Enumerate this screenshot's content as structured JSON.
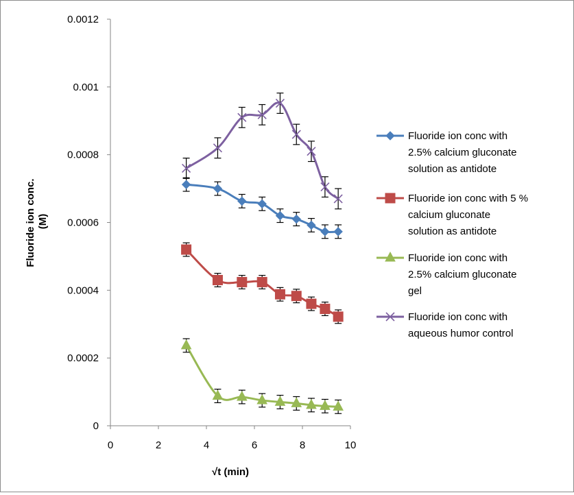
{
  "chart_data": {
    "type": "scatter",
    "xlabel": "√t (min)",
    "ylabel_lines": [
      "Fluoride ion conc.",
      "(M)"
    ],
    "xlim": [
      0,
      10
    ],
    "ylim": [
      0,
      0.0012
    ],
    "x_ticks": [
      "0",
      "2",
      "4",
      "6",
      "8",
      "10"
    ],
    "y_ticks": [
      "0",
      "0.0002",
      "0.0004",
      "0.0006",
      "0.0008",
      "0.001",
      "0.0012"
    ],
    "grid": false,
    "legend_position": "right",
    "series": [
      {
        "name_lines": [
          "Fluoride ion conc with",
          "2.5% calcium gluconate",
          "solution as antidote"
        ],
        "color": "#4a7ebb",
        "marker": "diamond",
        "x": [
          3.16,
          4.47,
          5.48,
          6.32,
          7.07,
          7.75,
          8.37,
          8.94,
          9.49
        ],
        "y": [
          0.000712,
          0.0007,
          0.000663,
          0.000655,
          0.00062,
          0.00061,
          0.000592,
          0.000573,
          0.000573
        ],
        "err": [
          2e-05,
          2e-05,
          2e-05,
          2e-05,
          2e-05,
          2e-05,
          2e-05,
          2e-05,
          2e-05
        ]
      },
      {
        "name_lines": [
          "Fluoride ion conc with 5 %",
          "calcium gluconate",
          "solution as antidote"
        ],
        "color": "#be4b48",
        "marker": "square",
        "x": [
          3.16,
          4.47,
          5.48,
          6.32,
          7.07,
          7.75,
          8.37,
          8.94,
          9.49
        ],
        "y": [
          0.00052,
          0.00043,
          0.000424,
          0.000424,
          0.000388,
          0.000383,
          0.00036,
          0.000345,
          0.000322
        ],
        "err": [
          2e-05,
          2e-05,
          2e-05,
          2e-05,
          2e-05,
          2e-05,
          2e-05,
          2e-05,
          2e-05
        ]
      },
      {
        "name_lines": [
          "Fluoride ion conc with",
          "2.5% calcium gluconate",
          "gel"
        ],
        "color": "#98b954",
        "marker": "triangle",
        "x": [
          3.16,
          4.47,
          5.48,
          6.32,
          7.07,
          7.75,
          8.37,
          8.94,
          9.49
        ],
        "y": [
          0.000237,
          8.8e-05,
          8.5e-05,
          7.5e-05,
          7e-05,
          6.6e-05,
          6.1e-05,
          5.8e-05,
          5.6e-05
        ],
        "err": [
          2e-05,
          2e-05,
          2e-05,
          2e-05,
          2e-05,
          2e-05,
          2e-05,
          2e-05,
          2e-05
        ]
      },
      {
        "name_lines": [
          "Fluoride ion conc with",
          "aqueous humor control"
        ],
        "color": "#7d60a0",
        "marker": "x",
        "x": [
          3.16,
          4.47,
          5.48,
          6.32,
          7.07,
          7.75,
          8.37,
          8.94,
          9.49
        ],
        "y": [
          0.00076,
          0.00082,
          0.00091,
          0.000918,
          0.000952,
          0.00086,
          0.00081,
          0.000705,
          0.00067
        ],
        "err": [
          3e-05,
          3e-05,
          3e-05,
          3e-05,
          3e-05,
          3e-05,
          3e-05,
          3e-05,
          3e-05
        ]
      }
    ]
  }
}
